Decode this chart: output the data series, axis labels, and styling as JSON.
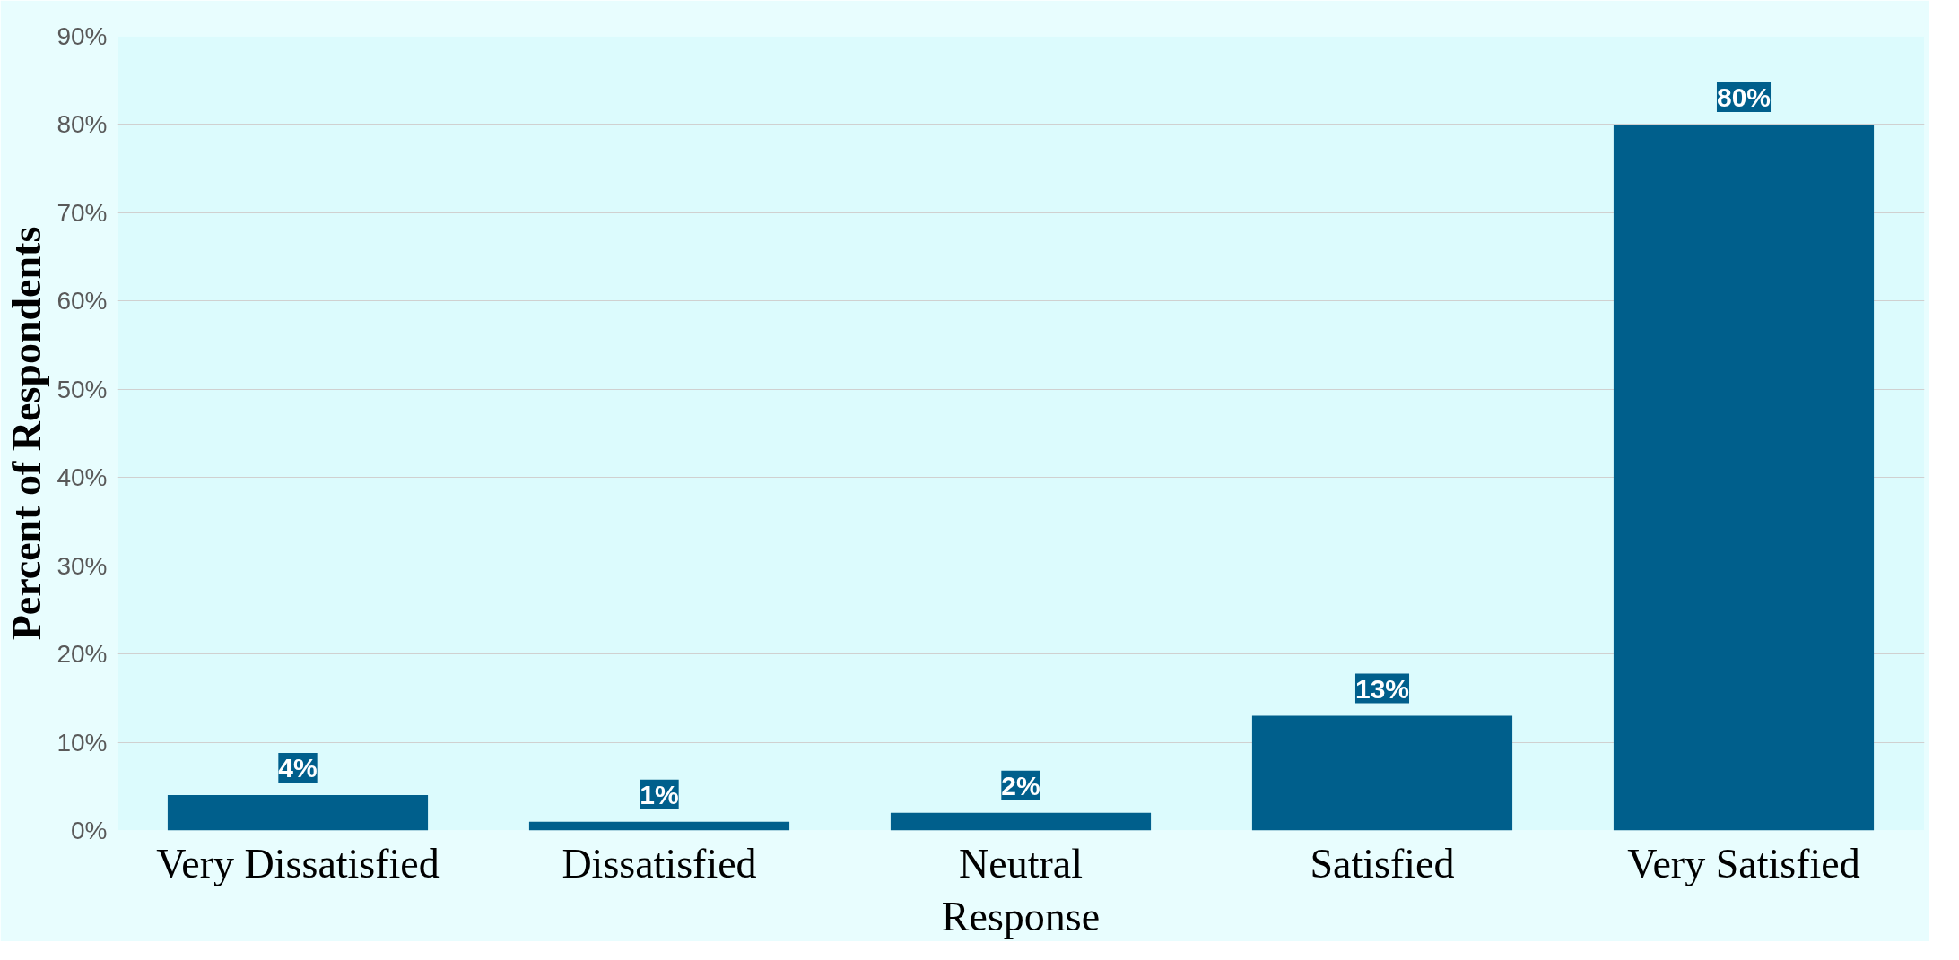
{
  "chart_data": {
    "type": "bar",
    "xlabel": "Response",
    "ylabel": "Percent of Respondents",
    "categories": [
      "Very Dissatisfied",
      "Dissatisfied",
      "Neutral",
      "Satisfied",
      "Very Satisfied"
    ],
    "values": [
      4,
      1,
      2,
      13,
      80
    ],
    "color": "#005f8c",
    "data_labels": true,
    "value_labels": [
      "4%",
      "1%",
      "2%",
      "13%",
      "80%"
    ],
    "ylim": [
      0,
      90
    ],
    "yticks": [
      {
        "value": 0,
        "label": "0%"
      },
      {
        "value": 10,
        "label": "10%"
      },
      {
        "value": 20,
        "label": "20%"
      },
      {
        "value": 30,
        "label": "30%"
      },
      {
        "value": 40,
        "label": "40%"
      },
      {
        "value": 50,
        "label": "50%"
      },
      {
        "value": 60,
        "label": "60%"
      },
      {
        "value": 70,
        "label": "70%"
      },
      {
        "value": 80,
        "label": "80%"
      },
      {
        "value": 90,
        "label": "90%"
      }
    ],
    "grid": "y"
  }
}
